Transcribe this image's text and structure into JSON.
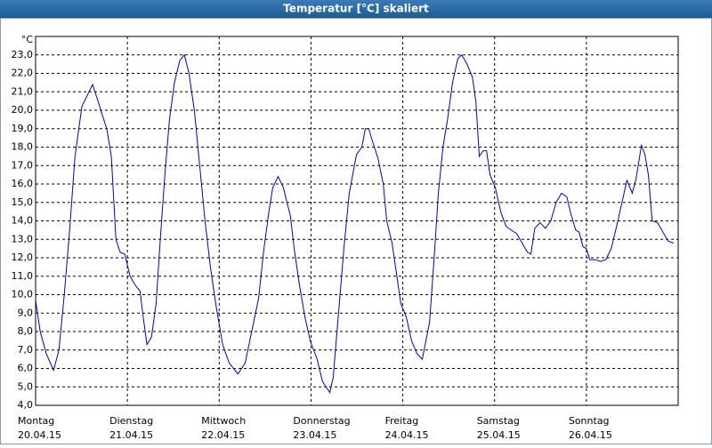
{
  "chart_data": {
    "type": "line",
    "title": "Temperatur [°C] skaliert",
    "y_unit": "°C",
    "x": [
      0,
      1.2,
      2.8,
      4.7,
      6.1,
      7.5,
      8.9,
      10.3,
      12.1,
      13.5,
      14.9,
      16.3,
      17.5,
      18.6,
      19.8,
      21,
      22.1,
      23.3,
      24.7,
      26.1,
      27.3,
      28,
      29.1,
      30.3,
      31.5,
      32.6,
      33.8,
      35,
      36.3,
      37.7,
      38.9,
      40.1,
      41.5,
      42.9,
      44.3,
      45.7,
      47.1,
      48.9,
      50.6,
      52.9,
      54.8,
      56.2,
      58.3,
      59.7,
      61,
      62,
      63.4,
      64.8,
      65.7,
      66.6,
      67.6,
      69,
      70.4,
      71.8,
      73.6,
      75,
      76.9,
      77.8,
      79.2,
      80.6,
      82,
      83.9,
      85.3,
      86.2,
      87.1,
      88.1,
      89.5,
      90.9,
      91.8,
      93.2,
      94.1,
      95.5,
      96.9,
      98.3,
      99.7,
      101.1,
      103,
      104.2,
      105.3,
      106.5,
      107.7,
      109,
      110.4,
      111.4,
      112.8,
      114.2,
      115.1,
      116,
      117,
      117.9,
      118.8,
      120.2,
      121.6,
      123,
      124.4,
      125.8,
      127.2,
      128.6,
      129.5,
      130.5,
      131.9,
      133.3,
      134.7,
      136.1,
      137.5,
      138.9,
      139.8,
      141.2,
      142.1,
      143.1,
      144,
      144.9,
      146.3,
      147.7,
      149.1,
      150.5,
      151.9,
      153.3,
      154.6,
      156,
      157,
      158.4,
      159.3,
      160.2,
      161.2,
      162.6,
      164,
      165.4,
      166.8
    ],
    "series": [
      {
        "name": "Temperatur",
        "color": "#0000c0",
        "values": [
          9.7,
          8.0,
          6.8,
          5.9,
          7.0,
          10,
          13.5,
          17.5,
          20.2,
          20.8,
          21.4,
          20.5,
          19.7,
          19.0,
          17.5,
          13.0,
          12.3,
          12.2,
          11.0,
          10.5,
          10.2,
          9.0,
          7.3,
          7.7,
          9.5,
          13,
          16.5,
          19.5,
          21.5,
          22.7,
          23.0,
          22.0,
          20,
          17,
          14,
          11.5,
          9.5,
          7.3,
          6.3,
          5.7,
          6.3,
          7.7,
          9.8,
          12.5,
          14.5,
          15.8,
          16.4,
          15.8,
          15.0,
          14.3,
          12.5,
          10.5,
          8.8,
          7.5,
          6.5,
          5.3,
          4.7,
          5.5,
          9.0,
          12.5,
          15.5,
          17.6,
          18.0,
          19.0,
          19.0,
          18.3,
          17.4,
          16.0,
          14.0,
          12.8,
          11.5,
          9.5,
          8.8,
          7.5,
          6.8,
          6.5,
          8.5,
          12,
          15.5,
          18,
          19.5,
          21.5,
          22.8,
          23.0,
          22.5,
          21.8,
          20.5,
          17.5,
          17.8,
          17.8,
          16.5,
          15.8,
          14.5,
          13.7,
          13.5,
          13.3,
          12.8,
          12.3,
          12.2,
          13.6,
          13.9,
          13.6,
          14.0,
          15.0,
          15.5,
          15.3,
          14.5,
          13.5,
          13.4,
          12.6,
          12.5,
          11.9,
          11.9,
          11.8,
          11.9,
          12.5,
          13.7,
          15.0,
          16.2,
          15.5,
          16.3,
          18.1,
          17.6,
          16.5,
          14.0,
          13.9,
          13.4,
          12.9,
          12.8
        ]
      }
    ],
    "xlim": [
      0,
      168
    ],
    "xticks": [
      {
        "value": 0,
        "label": "Montag",
        "date": "20.04.15"
      },
      {
        "value": 24,
        "label": "Dienstag",
        "date": "21.04.15"
      },
      {
        "value": 48,
        "label": "Mittwoch",
        "date": "22.04.15"
      },
      {
        "value": 72,
        "label": "Donnerstag",
        "date": "23.04.15"
      },
      {
        "value": 96,
        "label": "Freitag",
        "date": "24.04.15"
      },
      {
        "value": 120,
        "label": "Samstag",
        "date": "25.04.15"
      },
      {
        "value": 144,
        "label": "Sonntag",
        "date": "26.04.15"
      }
    ],
    "ylim": [
      4,
      24
    ],
    "yticks": [
      {
        "value": 4,
        "label": "4,0"
      },
      {
        "value": 5,
        "label": "5,0"
      },
      {
        "value": 6,
        "label": "6,0"
      },
      {
        "value": 7,
        "label": "7,0"
      },
      {
        "value": 8,
        "label": "8,0"
      },
      {
        "value": 9,
        "label": "9,0"
      },
      {
        "value": 10,
        "label": "10,0"
      },
      {
        "value": 11,
        "label": "11,0"
      },
      {
        "value": 12,
        "label": "12,0"
      },
      {
        "value": 13,
        "label": "13,0"
      },
      {
        "value": 14,
        "label": "14,0"
      },
      {
        "value": 15,
        "label": "15,0"
      },
      {
        "value": 16,
        "label": "16,0"
      },
      {
        "value": 17,
        "label": "17,0"
      },
      {
        "value": 18,
        "label": "18,0"
      },
      {
        "value": 19,
        "label": "19,0"
      },
      {
        "value": 20,
        "label": "20,0"
      },
      {
        "value": 21,
        "label": "21,0"
      },
      {
        "value": 22,
        "label": "22,0"
      },
      {
        "value": 23,
        "label": "23,0"
      }
    ],
    "grid": true
  }
}
